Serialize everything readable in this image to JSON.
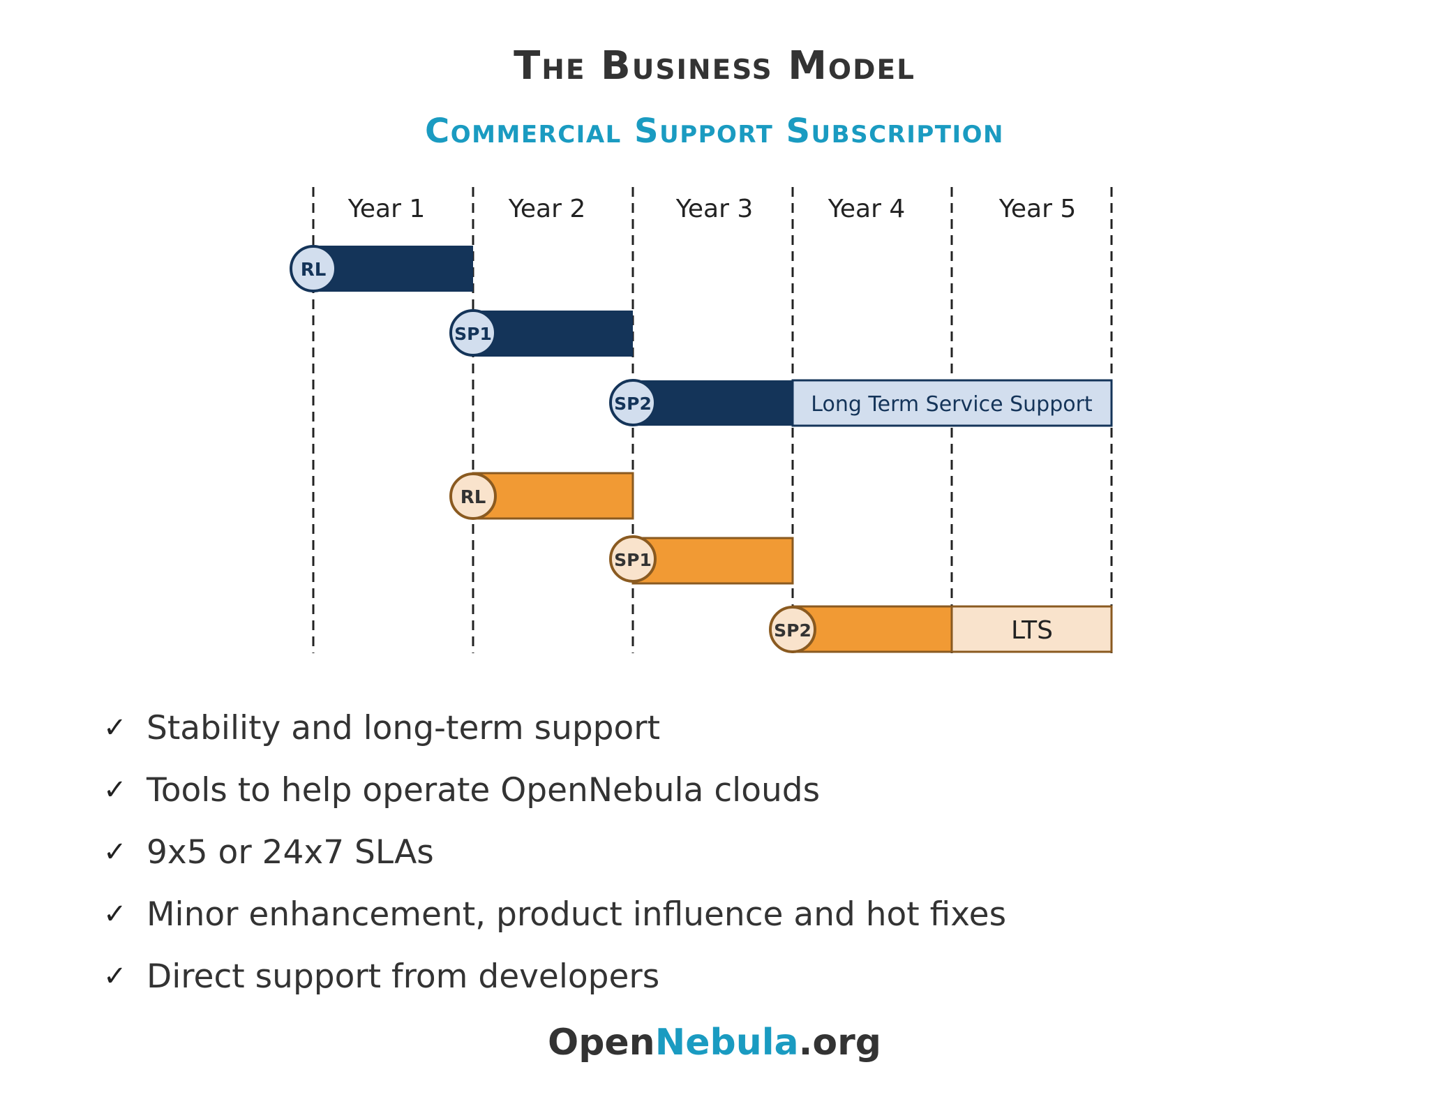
{
  "title": "The Business Model",
  "subtitle": "Commercial Support Subscription",
  "timeline": {
    "years": [
      "Year 1",
      "Year 2",
      "Year 3",
      "Year 4",
      "Year 5"
    ],
    "release_a": {
      "rl": "RL",
      "sp1": "SP1",
      "sp2": "SP2",
      "lts_label": "Long Term Service Support"
    },
    "release_b": {
      "rl": "RL",
      "sp1": "SP1",
      "sp2": "SP2",
      "lts_label": "LTS"
    },
    "colors": {
      "navy": "#143459",
      "navy_light": "#d2deee",
      "orange": "#f19a34",
      "orange_light": "#f9e3cc",
      "orange_border": "#8a5a20"
    }
  },
  "benefits": [
    "Stability and long-term support",
    "Tools to help operate OpenNebula clouds",
    "9x5 or 24x7 SLAs",
    "Minor enhancement, product influence and hot fixes",
    "Direct support from developers"
  ],
  "check_icon": "checkmark-icon",
  "footer": {
    "part1": "Open",
    "part2": "Nebula",
    "part3": ".org"
  }
}
